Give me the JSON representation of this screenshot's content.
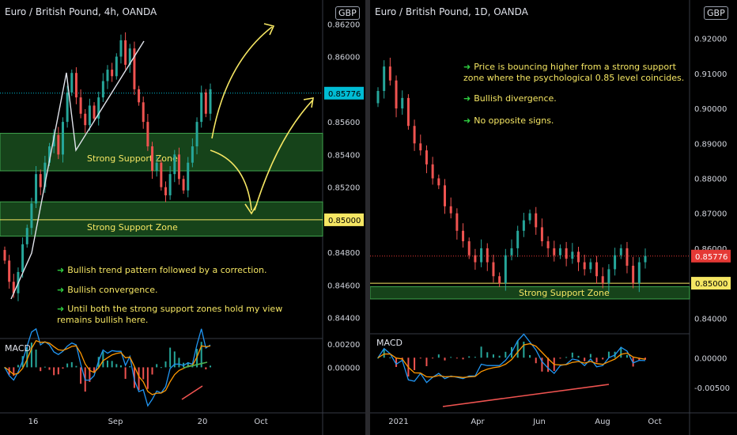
{
  "left": {
    "title": "Euro / British Pound, 4h, OANDA",
    "currency": "GBP",
    "macd_label": "MACD",
    "annotations": [
      "Bullish trend pattern followed by a correction.",
      "Bullish convergence.",
      "Until both the strong support zones hold my view remains bullish here."
    ],
    "zone_labels": [
      "Strong Support Zone",
      "Strong Support Zone"
    ],
    "current_price": "0.85776",
    "level_price": "0.85000"
  },
  "right": {
    "title": "Euro / British Pound, 1D, OANDA",
    "currency": "GBP",
    "macd_label": "MACD",
    "annotations": [
      "Price is bouncing higher from a strong support zone where the psychological 0.85 level coincides.",
      "Bullish divergence.",
      "No opposite signs."
    ],
    "zone_label": "Strong Support Zone",
    "current_price": "0.85776",
    "level_price": "0.85000"
  },
  "colors": {
    "up": "#26a69a",
    "down": "#ef5350",
    "zone": "#1e5a23",
    "level": "#f5e663",
    "annotation": "#f5e663",
    "macd": "#2196f3",
    "signal": "#ff9800"
  },
  "chart_data": [
    {
      "type": "candlestick",
      "title": "Euro / British Pound, 4h, OANDA",
      "y_ticks": [
        "0.86200",
        "0.86000",
        "0.85800",
        "0.85600",
        "0.85400",
        "0.85200",
        "0.84800",
        "0.84600",
        "0.84400"
      ],
      "ylim": [
        0.8435,
        0.8625
      ],
      "x_ticks": [
        "16",
        "Sep",
        "20",
        "Oct"
      ],
      "zones": [
        {
          "label": "Strong Support Zone",
          "low": 0.853,
          "high": 0.8553
        },
        {
          "label": "Strong Support Zone",
          "low": 0.849,
          "high": 0.8511
        }
      ],
      "levels": [
        0.85
      ],
      "last_price": 0.85776,
      "macd": {
        "y_ticks": [
          "0.00200",
          "0.00000"
        ],
        "ylim": [
          -0.0035,
          0.0022
        ]
      },
      "closes": [
        0.8475,
        0.8462,
        0.8455,
        0.8468,
        0.8485,
        0.8495,
        0.851,
        0.8528,
        0.852,
        0.8535,
        0.8545,
        0.8552,
        0.854,
        0.856,
        0.8578,
        0.859,
        0.8575,
        0.8565,
        0.8558,
        0.857,
        0.8562,
        0.8575,
        0.8585,
        0.8592,
        0.8588,
        0.86,
        0.861,
        0.8595,
        0.8605,
        0.858,
        0.8572,
        0.856,
        0.8545,
        0.853,
        0.8535,
        0.852,
        0.8515,
        0.8528,
        0.854,
        0.8525,
        0.8518,
        0.8535,
        0.8545,
        0.856,
        0.8578,
        0.8565,
        0.858
      ]
    },
    {
      "type": "candlestick",
      "title": "Euro / British Pound, 1D, OANDA",
      "y_ticks": [
        "0.92000",
        "0.91000",
        "0.90000",
        "0.89000",
        "0.88000",
        "0.87000",
        "0.86000",
        "0.84000"
      ],
      "ylim": [
        0.8378,
        0.9265
      ],
      "x_ticks": [
        "2021",
        "Apr",
        "Jun",
        "Aug",
        "Oct"
      ],
      "zones": [
        {
          "label": "Strong Support Zone",
          "low": 0.8455,
          "high": 0.849
        }
      ],
      "levels": [
        0.85
      ],
      "last_price": 0.85776,
      "macd": {
        "y_ticks": [
          "0.00000",
          "-0.00500"
        ],
        "ylim": [
          -0.0085,
          0.0035
        ]
      },
      "closes": [
        0.905,
        0.912,
        0.908,
        0.9,
        0.903,
        0.895,
        0.89,
        0.888,
        0.884,
        0.88,
        0.878,
        0.872,
        0.87,
        0.865,
        0.862,
        0.858,
        0.856,
        0.86,
        0.856,
        0.852,
        0.85,
        0.858,
        0.86,
        0.865,
        0.868,
        0.87,
        0.866,
        0.862,
        0.86,
        0.858,
        0.86,
        0.857,
        0.859,
        0.856,
        0.854,
        0.856,
        0.852,
        0.85,
        0.854,
        0.858,
        0.86,
        0.855,
        0.85,
        0.856,
        0.8578
      ]
    }
  ]
}
